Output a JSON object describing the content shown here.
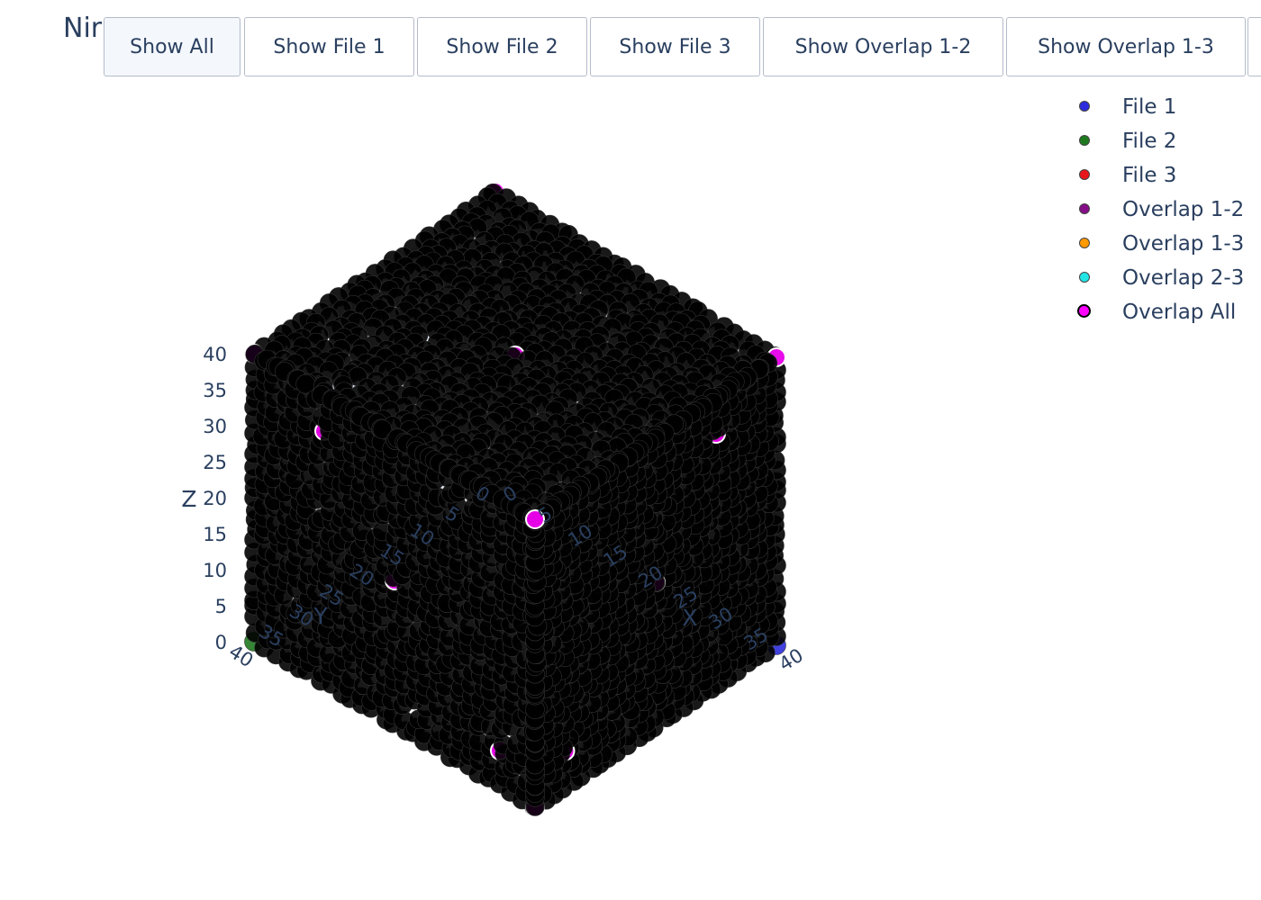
{
  "title": "Nir",
  "buttons": [
    {
      "label": "Show All",
      "active": true
    },
    {
      "label": "Show File 1",
      "active": false
    },
    {
      "label": "Show File 2",
      "active": false
    },
    {
      "label": "Show File 3",
      "active": false
    },
    {
      "label": "Show Overlap 1-2",
      "active": false
    },
    {
      "label": "Show Overlap 1-3",
      "active": false
    }
  ],
  "chart_data": {
    "type": "scatter3d",
    "title": "",
    "axes": {
      "x": {
        "label": "X",
        "range": [
          0,
          40
        ],
        "ticks": [
          "0",
          "5",
          "10",
          "15",
          "20",
          "25",
          "30",
          "35",
          "40"
        ]
      },
      "y": {
        "label": "Y",
        "range": [
          0,
          40
        ],
        "ticks": [
          "0",
          "5",
          "10",
          "15",
          "20",
          "25",
          "30",
          "35",
          "40"
        ]
      },
      "z": {
        "label": "Z",
        "range": [
          0,
          40
        ],
        "ticks": [
          "0",
          "5",
          "10",
          "15",
          "20",
          "25",
          "30",
          "35",
          "40"
        ]
      }
    },
    "legend_position": "top-right",
    "series": [
      {
        "name": "File 1",
        "color": "#2c2cdc",
        "border": "#444444"
      },
      {
        "name": "File 2",
        "color": "#1f7a1f",
        "border": "#444444"
      },
      {
        "name": "File 3",
        "color": "#e8171b",
        "border": "#444444"
      },
      {
        "name": "Overlap 1-2",
        "color": "#850e86",
        "border": "#444444"
      },
      {
        "name": "Overlap 1-3",
        "color": "#ff9900",
        "border": "#444444"
      },
      {
        "name": "Overlap 2-3",
        "color": "#22e5e5",
        "border": "#444444"
      },
      {
        "name": "Overlap All",
        "color": "#ff00ff",
        "border": "#000000"
      }
    ]
  }
}
